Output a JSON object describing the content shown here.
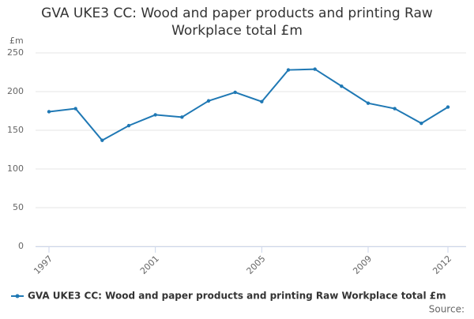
{
  "chart_data": {
    "type": "line",
    "title": "GVA UKE3 CC: Wood and paper products and printing Raw Workplace total £m",
    "y_label": "£m",
    "source_label": "Source:",
    "x": [
      1997,
      1998,
      1999,
      2000,
      2001,
      2002,
      2003,
      2004,
      2005,
      2006,
      2007,
      2008,
      2009,
      2010,
      2011,
      2012
    ],
    "series": [
      {
        "name": "GVA UKE3 CC: Wood and paper products and printing Raw Workplace total £m",
        "color": "#1f78b4",
        "values": [
          174,
          178,
          137,
          156,
          170,
          167,
          188,
          199,
          187,
          228,
          229,
          207,
          185,
          178,
          159,
          180
        ]
      }
    ],
    "xlim": [
      1997,
      2012
    ],
    "xticks": [
      1997,
      2001,
      2005,
      2009,
      2012
    ],
    "ylim": [
      0,
      250
    ],
    "yticks": [
      0,
      50,
      100,
      150,
      200,
      250
    ],
    "grid": true,
    "legend": "bottom"
  }
}
